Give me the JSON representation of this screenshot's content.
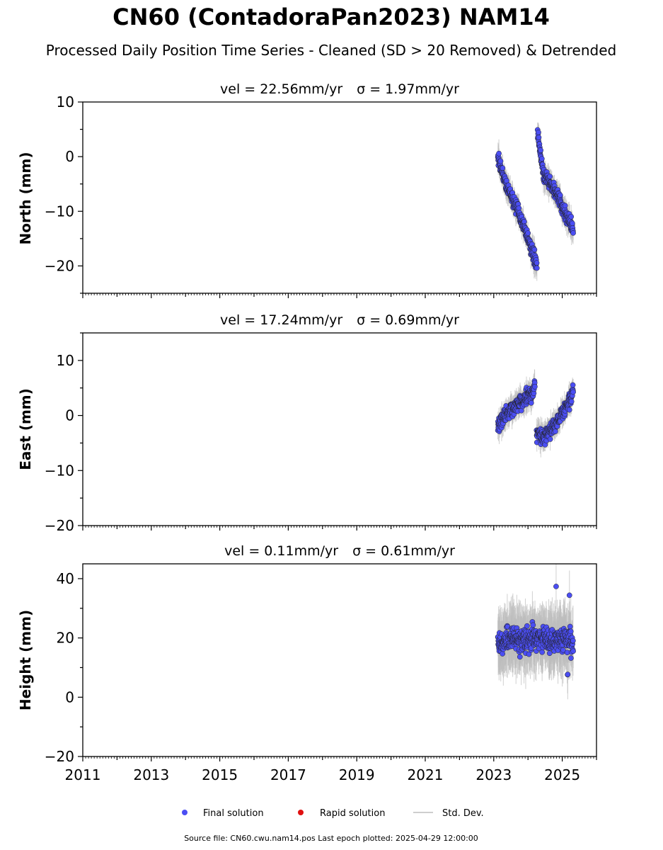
{
  "figure": {
    "title": "CN60 (ContadoraPan2023) NAM14",
    "subtitle": "Processed Daily Position Time Series - Cleaned (SD > 20 Removed) & Detrended",
    "source_line": "Source file: CN60.cwu.nam14.pos  Last epoch plotted: 2025-04-29 12:00:00"
  },
  "legend": {
    "final_label": "Final solution",
    "rapid_label": "Rapid solution",
    "std_label": "Std. Dev."
  },
  "colors": {
    "final": "#4b4ef3",
    "rapid": "#e01010",
    "std_dev": "#bdbdbd"
  },
  "panels": [
    {
      "vel_label": "vel = 22.56mm/yr",
      "sigma_label": "σ = 1.97mm/yr",
      "ylabel": "North (mm)",
      "ylim": [
        -25,
        10
      ],
      "yticks": [
        -20,
        -10,
        0,
        10
      ],
      "ytick_labels": [
        "−20",
        "−10",
        "0",
        "10"
      ]
    },
    {
      "vel_label": "vel = 17.24mm/yr",
      "sigma_label": "σ = 0.69mm/yr",
      "ylabel": "East (mm)",
      "ylim": [
        -20,
        15
      ],
      "yticks": [
        -20,
        -10,
        0,
        10
      ],
      "ytick_labels": [
        "−20",
        "−10",
        "0",
        "10"
      ]
    },
    {
      "vel_label": "vel = 0.11mm/yr",
      "sigma_label": "σ = 0.61mm/yr",
      "ylabel": "Height (mm)",
      "ylim": [
        -20,
        45
      ],
      "yticks": [
        -20,
        0,
        20,
        40
      ],
      "ytick_labels": [
        "−20",
        "0",
        "20",
        "40"
      ]
    }
  ],
  "x_axis": {
    "xlim": [
      2011,
      2026
    ],
    "ticks": [
      2011,
      2013,
      2015,
      2017,
      2019,
      2021,
      2023,
      2025
    ],
    "tick_labels": [
      "2011",
      "2013",
      "2015",
      "2017",
      "2019",
      "2021",
      "2023",
      "2025"
    ]
  },
  "chart_data": [
    {
      "type": "scatter",
      "ylabel": "North (mm)",
      "xlim": [
        2011,
        2026
      ],
      "ylim": [
        -25,
        10
      ],
      "series": [
        {
          "name": "Final solution",
          "segments": [
            {
              "x": [
                2023.12,
                2023.3,
                2023.5,
                2023.7,
                2023.9,
                2024.1,
                2024.26
              ],
              "y": [
                0,
                -4,
                -7,
                -10,
                -13,
                -17,
                -20
              ]
            },
            {
              "x": [
                2024.28,
                2024.45,
                2024.65,
                2024.85,
                2025.05,
                2025.25,
                2025.32
              ],
              "y": [
                4,
                -3,
                -5,
                -7,
                -10,
                -12,
                -14
              ]
            }
          ]
        }
      ],
      "annotations": "vel = 22.56mm/yr σ = 1.97mm/yr"
    },
    {
      "type": "scatter",
      "ylabel": "East (mm)",
      "xlim": [
        2011,
        2026
      ],
      "ylim": [
        -20,
        15
      ],
      "series": [
        {
          "name": "Final solution",
          "segments": [
            {
              "x": [
                2023.12,
                2023.3,
                2023.5,
                2023.7,
                2023.9,
                2024.1,
                2024.2
              ],
              "y": [
                -2,
                0,
                1,
                2,
                3,
                4,
                5
              ]
            },
            {
              "x": [
                2024.25,
                2024.45,
                2024.65,
                2024.85,
                2025.05,
                2025.25,
                2025.32
              ],
              "y": [
                -3,
                -4,
                -3,
                -1,
                1,
                3,
                5
              ]
            }
          ]
        }
      ],
      "annotations": "vel = 17.24mm/yr σ = 0.69mm/yr"
    },
    {
      "type": "scatter",
      "ylabel": "Height (mm)",
      "xlim": [
        2011,
        2026
      ],
      "ylim": [
        -20,
        45
      ],
      "series": [
        {
          "name": "Final solution",
          "segments": [
            {
              "x": [
                2023.12,
                2023.5,
                2023.9,
                2024.3,
                2024.7,
                2025.1,
                2025.32
              ],
              "y": [
                18,
                20,
                19,
                20,
                19,
                20,
                18
              ]
            }
          ]
        }
      ],
      "annotations": "vel = 0.11mm/yr σ = 0.61mm/yr"
    }
  ]
}
